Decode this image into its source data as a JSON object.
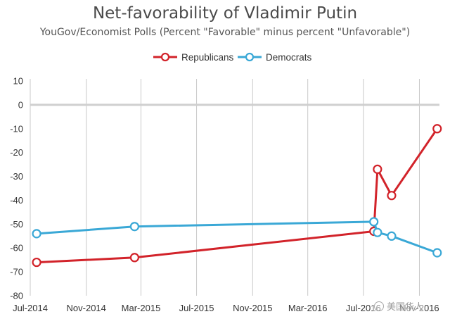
{
  "chart_data": {
    "type": "line",
    "title": "Net-favorability of Vladimir Putin",
    "subtitle": "YouGov/Economist Polls (Percent \"Favorable\" minus percent \"Unfavorable\")",
    "xlabel": "",
    "ylabel": "",
    "ylim": [
      -80,
      10
    ],
    "yticks": [
      10,
      0,
      -10,
      -20,
      -30,
      -40,
      -50,
      -60,
      -70,
      -80
    ],
    "xlim": [
      "2014-07-01",
      "2016-12-15"
    ],
    "xticks": [
      {
        "date": "2014-07-01",
        "label": "Jul-2014"
      },
      {
        "date": "2014-11-01",
        "label": "Nov-2014"
      },
      {
        "date": "2015-03-01",
        "label": "Mar-2015"
      },
      {
        "date": "2015-07-01",
        "label": "Jul-2015"
      },
      {
        "date": "2015-11-01",
        "label": "Nov-2015"
      },
      {
        "date": "2016-03-01",
        "label": "Mar-2016"
      },
      {
        "date": "2016-07-01",
        "label": "Jul-2016"
      },
      {
        "date": "2016-11-01",
        "label": "Nov-2016"
      }
    ],
    "grid": "vertical",
    "zero_line": true,
    "legend_position": "top-center",
    "series": [
      {
        "name": "Republicans",
        "color": "#d2232a",
        "points": [
          {
            "x": "2014-07-15",
            "y": -66
          },
          {
            "x": "2015-02-15",
            "y": -64
          },
          {
            "x": "2016-07-24",
            "y": -53
          },
          {
            "x": "2016-08-01",
            "y": -27
          },
          {
            "x": "2016-09-01",
            "y": -38
          },
          {
            "x": "2016-12-10",
            "y": -10
          }
        ]
      },
      {
        "name": "Democrats",
        "color": "#3aa8d6",
        "points": [
          {
            "x": "2014-07-15",
            "y": -54
          },
          {
            "x": "2015-02-15",
            "y": -51
          },
          {
            "x": "2016-07-24",
            "y": -49
          },
          {
            "x": "2016-08-01",
            "y": -53.5
          },
          {
            "x": "2016-09-01",
            "y": -55
          },
          {
            "x": "2016-12-10",
            "y": -62
          }
        ]
      }
    ]
  },
  "watermark": {
    "text": "美国华人",
    "icon": "chat-bubble-icon"
  }
}
